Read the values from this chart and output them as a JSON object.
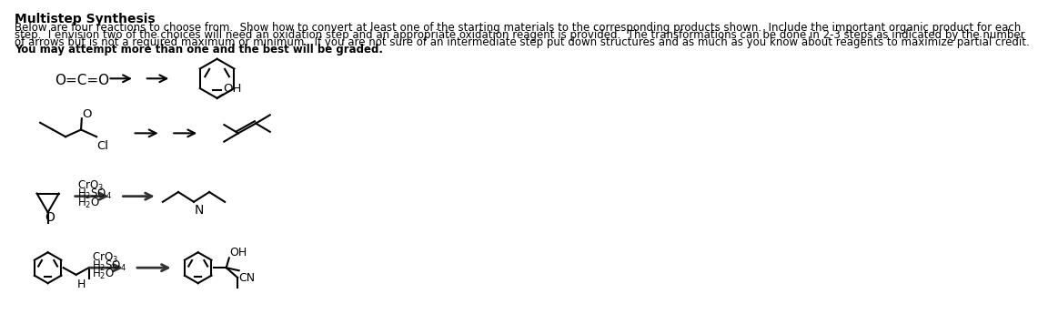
{
  "title": "Multistep Synthesis",
  "para_lines": [
    "Below are four reactions to choose from.  Show how to convert at least one of the starting materials to the corresponding products shown.  Include the important organic product for each",
    "step.  I envision two of the choices will need an oxidation step and an appropriate oxidation reagent is provided.  The transformations can be done in 2-3 steps as indicated by the number",
    "of arrows but is not a required maximum or minimum.  If you are not sure of an intermediate step put down structures and as much as you know about reagents to maximize partial credit.",
    "You may attempt more than one and the best will be graded."
  ],
  "background": "#ffffff",
  "text_color": "#000000",
  "font_size_title": 10,
  "font_size_body": 8.5
}
